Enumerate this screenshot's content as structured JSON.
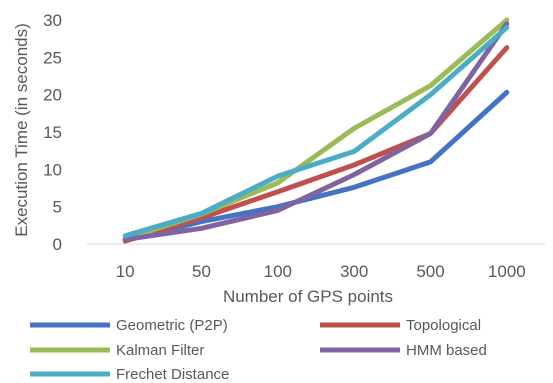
{
  "chart_data": {
    "type": "line",
    "categories": [
      "10",
      "50",
      "100",
      "300",
      "500",
      "1000"
    ],
    "xlabel": "Number of GPS points",
    "ylabel": "Execution Time (in seconds)",
    "ylim": [
      0,
      30
    ],
    "yticks": [
      0,
      5,
      10,
      15,
      20,
      25,
      30
    ],
    "grid": false,
    "legend": "bottom",
    "series": [
      {
        "name": "Geometric (P2P)",
        "color": "#4472c4",
        "values": [
          0.5,
          3.0,
          5.0,
          7.6,
          11.0,
          20.3
        ]
      },
      {
        "name": "Topological",
        "color": "#c0504d",
        "values": [
          0.4,
          3.5,
          7.0,
          10.6,
          14.8,
          26.3
        ]
      },
      {
        "name": "Kalman Filter",
        "color": "#9bbb59",
        "values": [
          0.7,
          4.0,
          8.2,
          15.5,
          21.2,
          30.0
        ]
      },
      {
        "name": "HMM based",
        "color": "#8064a2",
        "values": [
          0.6,
          2.1,
          4.5,
          9.3,
          14.8,
          29.5
        ]
      },
      {
        "name": "Frechet Distance",
        "color": "#4bacc6",
        "values": [
          1.1,
          4.1,
          9.1,
          12.4,
          20.0,
          29.0
        ]
      }
    ]
  }
}
